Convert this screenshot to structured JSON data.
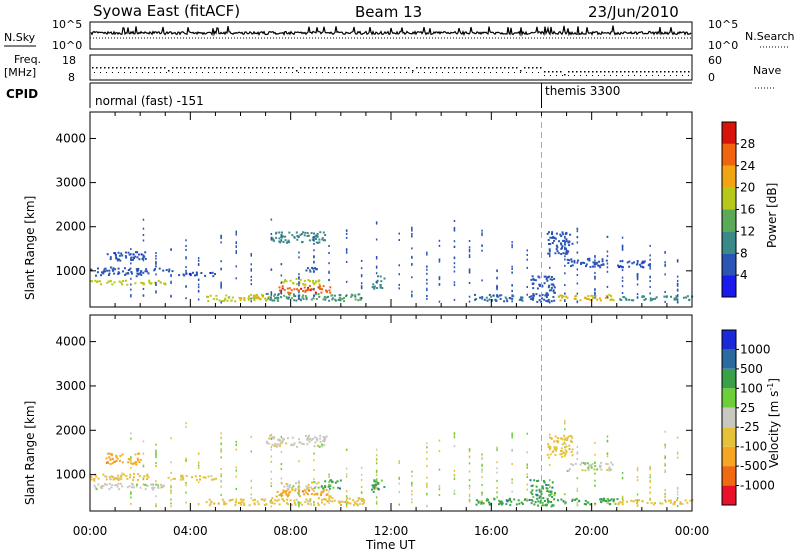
{
  "header": {
    "station": "Syowa East (fitACF)",
    "beam": "Beam 13",
    "date": "23/Jun/2010"
  },
  "nsky_panel": {
    "left_label": "N.Sky",
    "right_label": "N.Search",
    "tick_top": "10^5",
    "tick_bottom": "10^0"
  },
  "freq_panel": {
    "left_label_1": "Freq.",
    "left_label_2": "[MHz]",
    "left_tick_top": "18",
    "left_tick_bottom": "8",
    "right_label": "Nave",
    "right_tick_top": "60",
    "right_tick_bottom": "0"
  },
  "cpid_panel": {
    "label": "CPID",
    "modes": [
      {
        "name": "normal (fast) -151",
        "start_hour": 0
      },
      {
        "name": "themis 3300",
        "start_hour": 18
      }
    ]
  },
  "chart_data": [
    {
      "type": "heatmap",
      "name": "Power",
      "ylabel": "Slant Range [km]",
      "y_ticks": [
        "1000",
        "2000",
        "3000",
        "4000"
      ],
      "ylim": [
        180,
        4600
      ],
      "colorbar_label": "Power [dB]",
      "colorbar_ticks": [
        "4",
        "8",
        "12",
        "16",
        "20",
        "24",
        "28"
      ],
      "colors": [
        "#1a1aee",
        "#2a55b5",
        "#3a8a8a",
        "#5aaa5a",
        "#b8c81a",
        "#f2a512",
        "#f06410",
        "#d8140a"
      ],
      "regions": [
        {
          "t0": 0.0,
          "t1": 2.3,
          "r0": 900,
          "r1": 1100,
          "value": 6
        },
        {
          "t0": 0.6,
          "t1": 2.2,
          "r0": 1250,
          "r1": 1450,
          "value": 5
        },
        {
          "t0": 0.0,
          "t1": 3.0,
          "r0": 700,
          "r1": 800,
          "value": 18
        },
        {
          "t0": 2.5,
          "t1": 3.3,
          "r0": 1000,
          "r1": 1080,
          "value": 6
        },
        {
          "t0": 3.5,
          "t1": 5.0,
          "r0": 900,
          "r1": 1000,
          "value": 5
        },
        {
          "t0": 4.6,
          "t1": 7.0,
          "r0": 330,
          "r1": 480,
          "value": 17
        },
        {
          "t0": 5.8,
          "t1": 7.2,
          "r0": 380,
          "r1": 440,
          "value": 22
        },
        {
          "t0": 7.0,
          "t1": 11.0,
          "r0": 330,
          "r1": 500,
          "value": 12
        },
        {
          "t0": 7.4,
          "t1": 9.6,
          "r0": 520,
          "r1": 680,
          "value": 27
        },
        {
          "t0": 7.6,
          "t1": 9.2,
          "r0": 700,
          "r1": 850,
          "value": 18
        },
        {
          "t0": 7.2,
          "t1": 9.4,
          "r0": 1650,
          "r1": 1900,
          "value": 10
        },
        {
          "t0": 8.5,
          "t1": 9.3,
          "r0": 1000,
          "r1": 1100,
          "value": 7
        },
        {
          "t0": 11.2,
          "t1": 11.7,
          "r0": 600,
          "r1": 900,
          "value": 10
        },
        {
          "t0": 15.3,
          "t1": 17.6,
          "r0": 330,
          "r1": 480,
          "value": 8
        },
        {
          "t0": 17.5,
          "t1": 18.5,
          "r0": 300,
          "r1": 900,
          "value": 6
        },
        {
          "t0": 18.6,
          "t1": 21.0,
          "r0": 350,
          "r1": 480,
          "value": 20
        },
        {
          "t0": 19.0,
          "t1": 20.6,
          "r0": 1100,
          "r1": 1300,
          "value": 6
        },
        {
          "t0": 18.2,
          "t1": 19.2,
          "r0": 1400,
          "r1": 1900,
          "value": 6
        },
        {
          "t0": 21.0,
          "t1": 24.0,
          "r0": 350,
          "r1": 450,
          "value": 10
        },
        {
          "t0": 21.0,
          "t1": 22.3,
          "r0": 1100,
          "r1": 1250,
          "value": 5
        }
      ]
    },
    {
      "type": "heatmap",
      "name": "Velocity",
      "ylabel": "Slant Range [km]",
      "y_ticks": [
        "1000",
        "2000",
        "3000",
        "4000"
      ],
      "ylim": [
        180,
        4600
      ],
      "colorbar_label": "Velocity [m s-1]",
      "colorbar_ticks": [
        "-1000",
        "-500",
        "-100",
        "-25",
        "25",
        "100",
        "500",
        "1000"
      ],
      "colors": [
        "#e8102a",
        "#f06a12",
        "#f5a623",
        "#e6c23a",
        "#c8c8c0",
        "#6ccf3a",
        "#3aa04a",
        "#2a6aa0",
        "#1a2ad8"
      ],
      "regions": [
        {
          "t0": 0.0,
          "t1": 2.3,
          "r0": 880,
          "r1": 1050,
          "value": -30
        },
        {
          "t0": 0.6,
          "t1": 2.0,
          "r0": 1250,
          "r1": 1500,
          "value": -150
        },
        {
          "t0": 0.0,
          "t1": 3.0,
          "r0": 680,
          "r1": 820,
          "value": 0
        },
        {
          "t0": 3.0,
          "t1": 5.0,
          "r0": 900,
          "r1": 1000,
          "value": -60
        },
        {
          "t0": 4.6,
          "t1": 7.0,
          "r0": 330,
          "r1": 480,
          "value": -60
        },
        {
          "t0": 7.0,
          "t1": 11.0,
          "r0": 330,
          "r1": 500,
          "value": -70
        },
        {
          "t0": 7.4,
          "t1": 9.6,
          "r0": 520,
          "r1": 700,
          "value": -120
        },
        {
          "t0": 7.6,
          "t1": 9.2,
          "r0": 700,
          "r1": 850,
          "value": 0
        },
        {
          "t0": 7.0,
          "t1": 9.4,
          "r0": 1650,
          "r1": 1900,
          "value": 0
        },
        {
          "t0": 9.2,
          "t1": 10.0,
          "r0": 700,
          "r1": 900,
          "value": 150
        },
        {
          "t0": 11.2,
          "t1": 11.7,
          "r0": 600,
          "r1": 900,
          "value": 120
        },
        {
          "t0": 15.3,
          "t1": 17.6,
          "r0": 330,
          "r1": 480,
          "value": 200
        },
        {
          "t0": 17.5,
          "t1": 18.5,
          "r0": 300,
          "r1": 900,
          "value": 150
        },
        {
          "t0": 18.6,
          "t1": 21.0,
          "r0": 350,
          "r1": 480,
          "value": 300
        },
        {
          "t0": 19.0,
          "t1": 20.8,
          "r0": 1100,
          "r1": 1300,
          "value": 0
        },
        {
          "t0": 18.2,
          "t1": 19.2,
          "r0": 1400,
          "r1": 1900,
          "value": -40
        },
        {
          "t0": 21.0,
          "t1": 24.0,
          "r0": 350,
          "r1": 450,
          "value": -80
        }
      ]
    }
  ],
  "x_axis": {
    "label": "Time UT",
    "ticks": [
      "00:00",
      "04:00",
      "08:00",
      "12:00",
      "16:00",
      "20:00",
      "00:00"
    ]
  }
}
